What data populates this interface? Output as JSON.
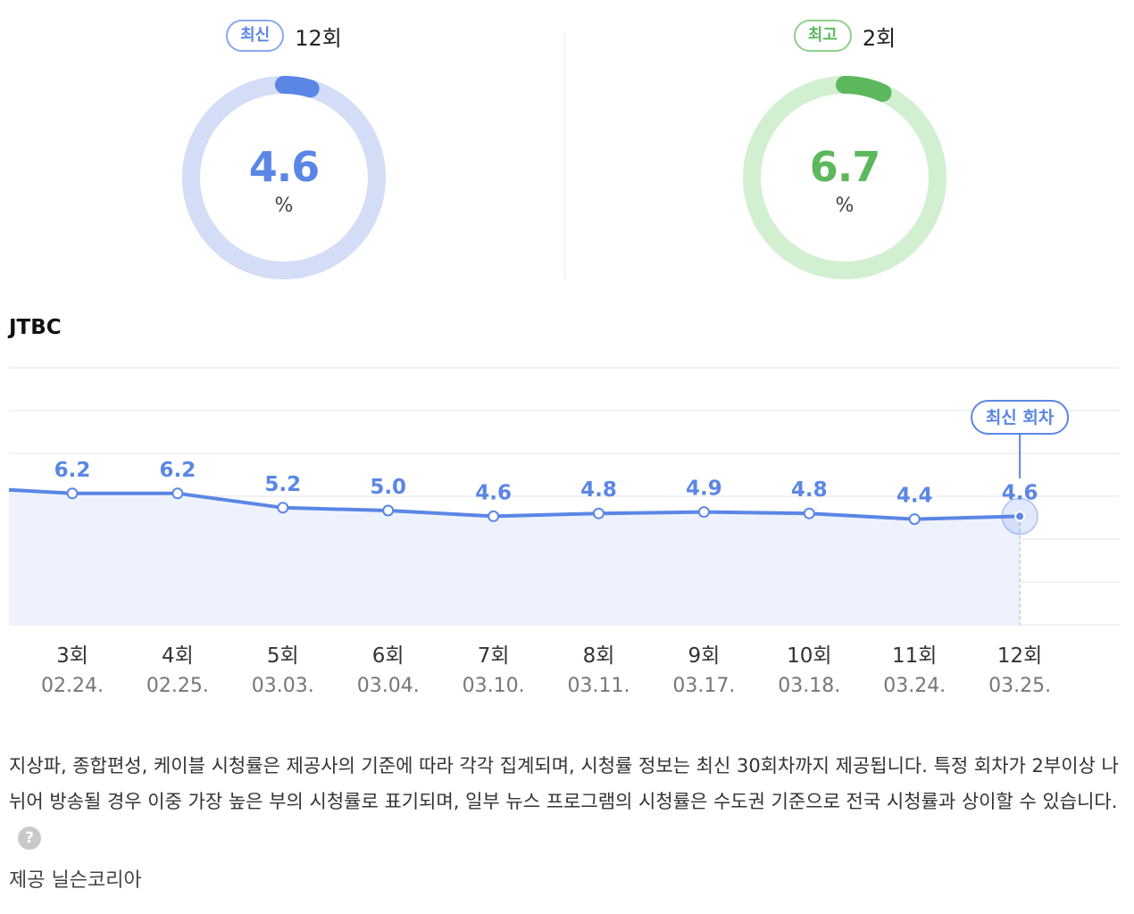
{
  "latest": {
    "badge": "최신",
    "episode": "12회",
    "value": "4.6",
    "unit": "%",
    "fraction": 0.046,
    "color": "#5b86e5",
    "track": "#d4ddf6"
  },
  "best": {
    "badge": "최고",
    "episode": "2회",
    "value": "6.7",
    "unit": "%",
    "fraction": 0.067,
    "color": "#5cb85c",
    "track": "#d3efd1"
  },
  "chart_title": "JTBC",
  "chart_data": {
    "type": "line",
    "categories": [
      "3회",
      "4회",
      "5회",
      "6회",
      "7회",
      "8회",
      "9회",
      "10회",
      "11회",
      "12회"
    ],
    "dates": [
      "02.24.",
      "02.25.",
      "03.03.",
      "03.04.",
      "03.10.",
      "03.11.",
      "03.17.",
      "03.18.",
      "03.24.",
      "03.25."
    ],
    "series": [
      {
        "values": [
          6.2,
          6.2,
          5.2,
          5.0,
          4.6,
          4.8,
          4.9,
          4.8,
          4.4,
          4.6
        ]
      }
    ],
    "highlight_label": "최신 회차",
    "highlight_index": 9,
    "line_color": "#5b86e5",
    "area_color": "#eef2fc",
    "grid": true,
    "legend": "none"
  },
  "notice": "지상파, 종합편성, 케이블 시청률은 제공사의 기준에 따라 각각 집계되며, 시청률 정보는 최신 30회차까지 제공됩니다. 특정 회차가 2부이상 나뉘어 방송될 경우 이중 가장 높은 부의 시청률로 표기되며, 일부 뉴스 프로그램의 시청률은 수도권 기준으로 전국 시청률과 상이할 수 있습니다.",
  "help_icon": "?",
  "provider": "제공 닐슨코리아"
}
